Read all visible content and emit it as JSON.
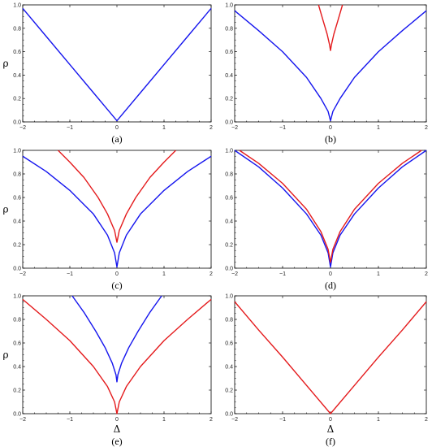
{
  "colors": {
    "blue": "#1515ee",
    "red": "#e41a1c"
  },
  "chart_data": [
    {
      "panel": "(a)",
      "type": "line",
      "xlabel": "",
      "ylabel": "ρ",
      "xlim": [
        -2,
        2
      ],
      "ylim": [
        0,
        1
      ],
      "xticks": [
        "−2",
        "−1",
        "0",
        "1",
        "2"
      ],
      "yticks": [
        "0.0",
        "0.2",
        "0.4",
        "0.6",
        "0.8",
        "1.0"
      ],
      "series": [
        {
          "color": "blue",
          "x": [
            -2,
            -1.5,
            -1,
            -0.5,
            0,
            0.5,
            1,
            1.5,
            2
          ],
          "y": [
            0.97,
            0.73,
            0.49,
            0.25,
            0.01,
            0.25,
            0.49,
            0.73,
            0.97
          ]
        }
      ]
    },
    {
      "panel": "(b)",
      "type": "line",
      "xlabel": "",
      "ylabel": "",
      "xlim": [
        -2,
        2
      ],
      "ylim": [
        0,
        1
      ],
      "xticks": [
        "−2",
        "−1",
        "0",
        "1",
        "2"
      ],
      "yticks": [
        "0.0",
        "0.2",
        "0.4",
        "0.6",
        "0.8",
        "1.0"
      ],
      "series": [
        {
          "color": "blue",
          "x": [
            -2,
            -1.5,
            -1,
            -0.5,
            -0.2,
            -0.05,
            0,
            0.05,
            0.2,
            0.5,
            1,
            1.5,
            2
          ],
          "y": [
            0.95,
            0.78,
            0.6,
            0.38,
            0.2,
            0.09,
            0.01,
            0.09,
            0.2,
            0.38,
            0.6,
            0.78,
            0.95
          ]
        },
        {
          "color": "red",
          "x": [
            -0.25,
            -0.15,
            -0.07,
            -0.02,
            0,
            0.02,
            0.07,
            0.15,
            0.25
          ],
          "y": [
            1.0,
            0.86,
            0.75,
            0.66,
            0.61,
            0.66,
            0.75,
            0.86,
            1.0
          ]
        }
      ]
    },
    {
      "panel": "(c)",
      "type": "line",
      "xlabel": "",
      "ylabel": "ρ",
      "xlim": [
        -2,
        2
      ],
      "ylim": [
        0,
        1
      ],
      "xticks": [
        "−2",
        "−1",
        "0",
        "1",
        "2"
      ],
      "yticks": [
        "0.0",
        "0.2",
        "0.4",
        "0.6",
        "0.8",
        "1.0"
      ],
      "series": [
        {
          "color": "blue",
          "x": [
            -2,
            -1.5,
            -1,
            -0.5,
            -0.2,
            -0.05,
            0,
            0.05,
            0.2,
            0.5,
            1,
            1.5,
            2
          ],
          "y": [
            0.95,
            0.82,
            0.66,
            0.46,
            0.28,
            0.13,
            0.01,
            0.13,
            0.28,
            0.46,
            0.66,
            0.82,
            0.95
          ]
        },
        {
          "color": "red",
          "x": [
            -1.25,
            -1,
            -0.7,
            -0.4,
            -0.2,
            -0.05,
            0,
            0.05,
            0.2,
            0.4,
            0.7,
            1,
            1.25
          ],
          "y": [
            1.0,
            0.9,
            0.77,
            0.6,
            0.46,
            0.32,
            0.22,
            0.32,
            0.46,
            0.6,
            0.77,
            0.9,
            1.0
          ]
        }
      ]
    },
    {
      "panel": "(d)",
      "type": "line",
      "xlabel": "",
      "ylabel": "",
      "xlim": [
        -2,
        2
      ],
      "ylim": [
        0,
        1
      ],
      "xticks": [
        "−2",
        "−1",
        "0",
        "1",
        "2"
      ],
      "yticks": [
        "0.0",
        "0.2",
        "0.4",
        "0.6",
        "0.8",
        "1.0"
      ],
      "series": [
        {
          "color": "blue",
          "x": [
            -2,
            -1.5,
            -1,
            -0.5,
            -0.2,
            -0.05,
            0,
            0.05,
            0.2,
            0.5,
            1,
            1.5,
            2
          ],
          "y": [
            1.0,
            0.86,
            0.68,
            0.46,
            0.28,
            0.13,
            0.01,
            0.13,
            0.28,
            0.46,
            0.68,
            0.86,
            1.0
          ]
        },
        {
          "color": "red",
          "x": [
            -1.9,
            -1.5,
            -1,
            -0.5,
            -0.2,
            -0.05,
            0,
            0.05,
            0.2,
            0.5,
            1,
            1.5,
            1.9
          ],
          "y": [
            1.0,
            0.89,
            0.72,
            0.5,
            0.31,
            0.16,
            0.05,
            0.16,
            0.31,
            0.5,
            0.72,
            0.89,
            1.0
          ]
        }
      ]
    },
    {
      "panel": "(e)",
      "type": "line",
      "xlabel": "Δ",
      "ylabel": "ρ",
      "xlim": [
        -2,
        2
      ],
      "ylim": [
        0,
        1
      ],
      "xticks": [
        "−2",
        "−1",
        "0",
        "1",
        "2"
      ],
      "yticks": [
        "0.0",
        "0.2",
        "0.4",
        "0.6",
        "0.8",
        "1.0"
      ],
      "series": [
        {
          "color": "red",
          "x": [
            -2,
            -1.5,
            -1,
            -0.5,
            -0.2,
            -0.05,
            0,
            0.05,
            0.2,
            0.5,
            1,
            1.5,
            2
          ],
          "y": [
            0.97,
            0.8,
            0.62,
            0.4,
            0.23,
            0.1,
            0.0,
            0.1,
            0.23,
            0.4,
            0.62,
            0.8,
            0.97
          ]
        },
        {
          "color": "blue",
          "x": [
            -0.95,
            -0.7,
            -0.45,
            -0.25,
            -0.1,
            -0.02,
            0,
            0.02,
            0.1,
            0.25,
            0.45,
            0.7,
            0.95
          ],
          "y": [
            1.0,
            0.86,
            0.7,
            0.56,
            0.43,
            0.33,
            0.27,
            0.33,
            0.43,
            0.56,
            0.7,
            0.86,
            1.0
          ]
        }
      ]
    },
    {
      "panel": "(f)",
      "type": "line",
      "xlabel": "Δ",
      "ylabel": "",
      "xlim": [
        -2,
        2
      ],
      "ylim": [
        0,
        1
      ],
      "xticks": [
        "−2",
        "−1",
        "0",
        "1",
        "2"
      ],
      "yticks": [
        "0.0",
        "0.2",
        "0.4",
        "0.6",
        "0.8",
        "1.0"
      ],
      "series": [
        {
          "color": "red",
          "x": [
            -2,
            -1.5,
            -1,
            -0.5,
            0,
            0.5,
            1,
            1.5,
            2
          ],
          "y": [
            0.95,
            0.71,
            0.48,
            0.24,
            0.0,
            0.24,
            0.48,
            0.71,
            0.95
          ]
        }
      ]
    }
  ]
}
